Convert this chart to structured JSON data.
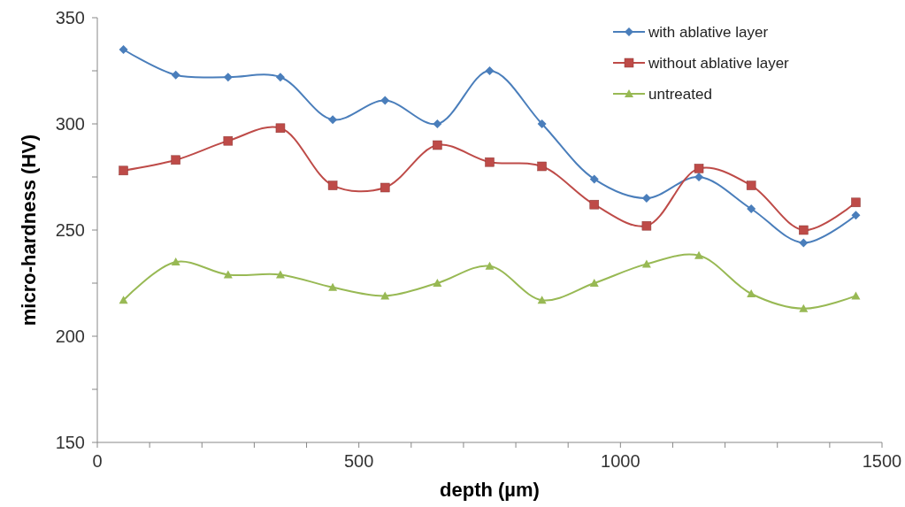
{
  "chart_data": {
    "type": "line",
    "xlabel": "depth (µm)",
    "ylabel": "micro-hardness (HV)",
    "x": [
      50,
      150,
      250,
      350,
      450,
      550,
      650,
      750,
      850,
      950,
      1050,
      1150,
      1250,
      1350,
      1450
    ],
    "xlim": [
      0,
      1500
    ],
    "ylim": [
      150,
      350
    ],
    "xticks": [
      0,
      {
        "value": 100,
        "label": null
      },
      {
        "value": 200,
        "label": null
      },
      {
        "value": 300,
        "label": null
      },
      {
        "value": 400,
        "label": null
      },
      500,
      {
        "value": 600,
        "label": null
      },
      {
        "value": 700,
        "label": null
      },
      {
        "value": 800,
        "label": null
      },
      {
        "value": 900,
        "label": null
      },
      1000,
      {
        "value": 1100,
        "label": null
      },
      {
        "value": 1200,
        "label": null
      },
      {
        "value": 1300,
        "label": null
      },
      {
        "value": 1400,
        "label": null
      },
      1500
    ],
    "yticks": [
      150,
      {
        "value": 175,
        "label": null
      },
      200,
      {
        "value": 225,
        "label": null
      },
      250,
      {
        "value": 275,
        "label": null
      },
      300,
      {
        "value": 325,
        "label": null
      },
      350
    ],
    "legend": "top right",
    "grid": false,
    "series": [
      {
        "name": "with ablative layer",
        "color": "#4a7ebb",
        "marker": "diamond",
        "values": [
          335,
          323,
          322,
          322,
          302,
          311,
          300,
          325,
          300,
          274,
          265,
          275,
          260,
          244,
          257
        ]
      },
      {
        "name": "without ablative layer",
        "color": "#be4b48",
        "marker": "square",
        "values": [
          278,
          283,
          292,
          298,
          271,
          270,
          290,
          282,
          280,
          262,
          252,
          279,
          271,
          250,
          263
        ]
      },
      {
        "name": "untreated",
        "color": "#98b954",
        "marker": "triangle",
        "values": [
          217,
          235,
          229,
          229,
          223,
          219,
          225,
          233,
          217,
          225,
          234,
          238,
          220,
          213,
          219
        ]
      }
    ]
  }
}
